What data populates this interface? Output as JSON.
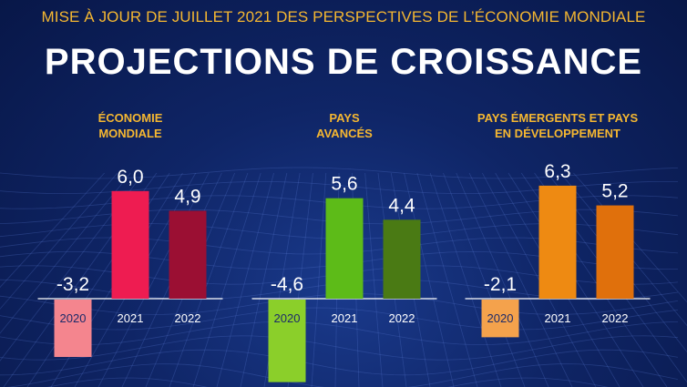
{
  "header": {
    "supertitle": "MISE À JOUR DE JUILLET 2021 DES PERSPECTIVES DE L’ÉCONOMIE MONDIALE",
    "title": "PROJECTIONS DE CROISSANCE"
  },
  "colors": {
    "background": "#0b1d5a",
    "title_accent": "#f5b731",
    "world": [
      "#f4858e",
      "#ee1c51",
      "#9b0f33"
    ],
    "advanced": [
      "#8bcf2a",
      "#5dbb18",
      "#4a7a14"
    ],
    "emerging": [
      "#f4a24c",
      "#ee8a12",
      "#e0700c"
    ]
  },
  "chart_data": [
    {
      "type": "bar",
      "title": [
        "ÉCONOMIE",
        "MONDIALE"
      ],
      "categories": [
        "2020",
        "2021",
        "2022"
      ],
      "values": [
        -3.2,
        6.0,
        4.9
      ],
      "value_labels": [
        "-3,2",
        "6,0",
        "4,9"
      ],
      "ylim": [
        -5,
        7
      ]
    },
    {
      "type": "bar",
      "title": [
        "PAYS",
        "AVANCÉS"
      ],
      "categories": [
        "2020",
        "2021",
        "2022"
      ],
      "values": [
        -4.6,
        5.6,
        4.4
      ],
      "value_labels": [
        "-4,6",
        "5,6",
        "4,4"
      ],
      "ylim": [
        -5,
        7
      ]
    },
    {
      "type": "bar",
      "title": [
        "PAYS ÉMERGENTS ET PAYS",
        "EN DÉVELOPPEMENT"
      ],
      "categories": [
        "2020",
        "2021",
        "2022"
      ],
      "values": [
        -2.1,
        6.3,
        5.2
      ],
      "value_labels": [
        "-2,1",
        "6,3",
        "5,2"
      ],
      "ylim": [
        -5,
        7
      ]
    }
  ]
}
